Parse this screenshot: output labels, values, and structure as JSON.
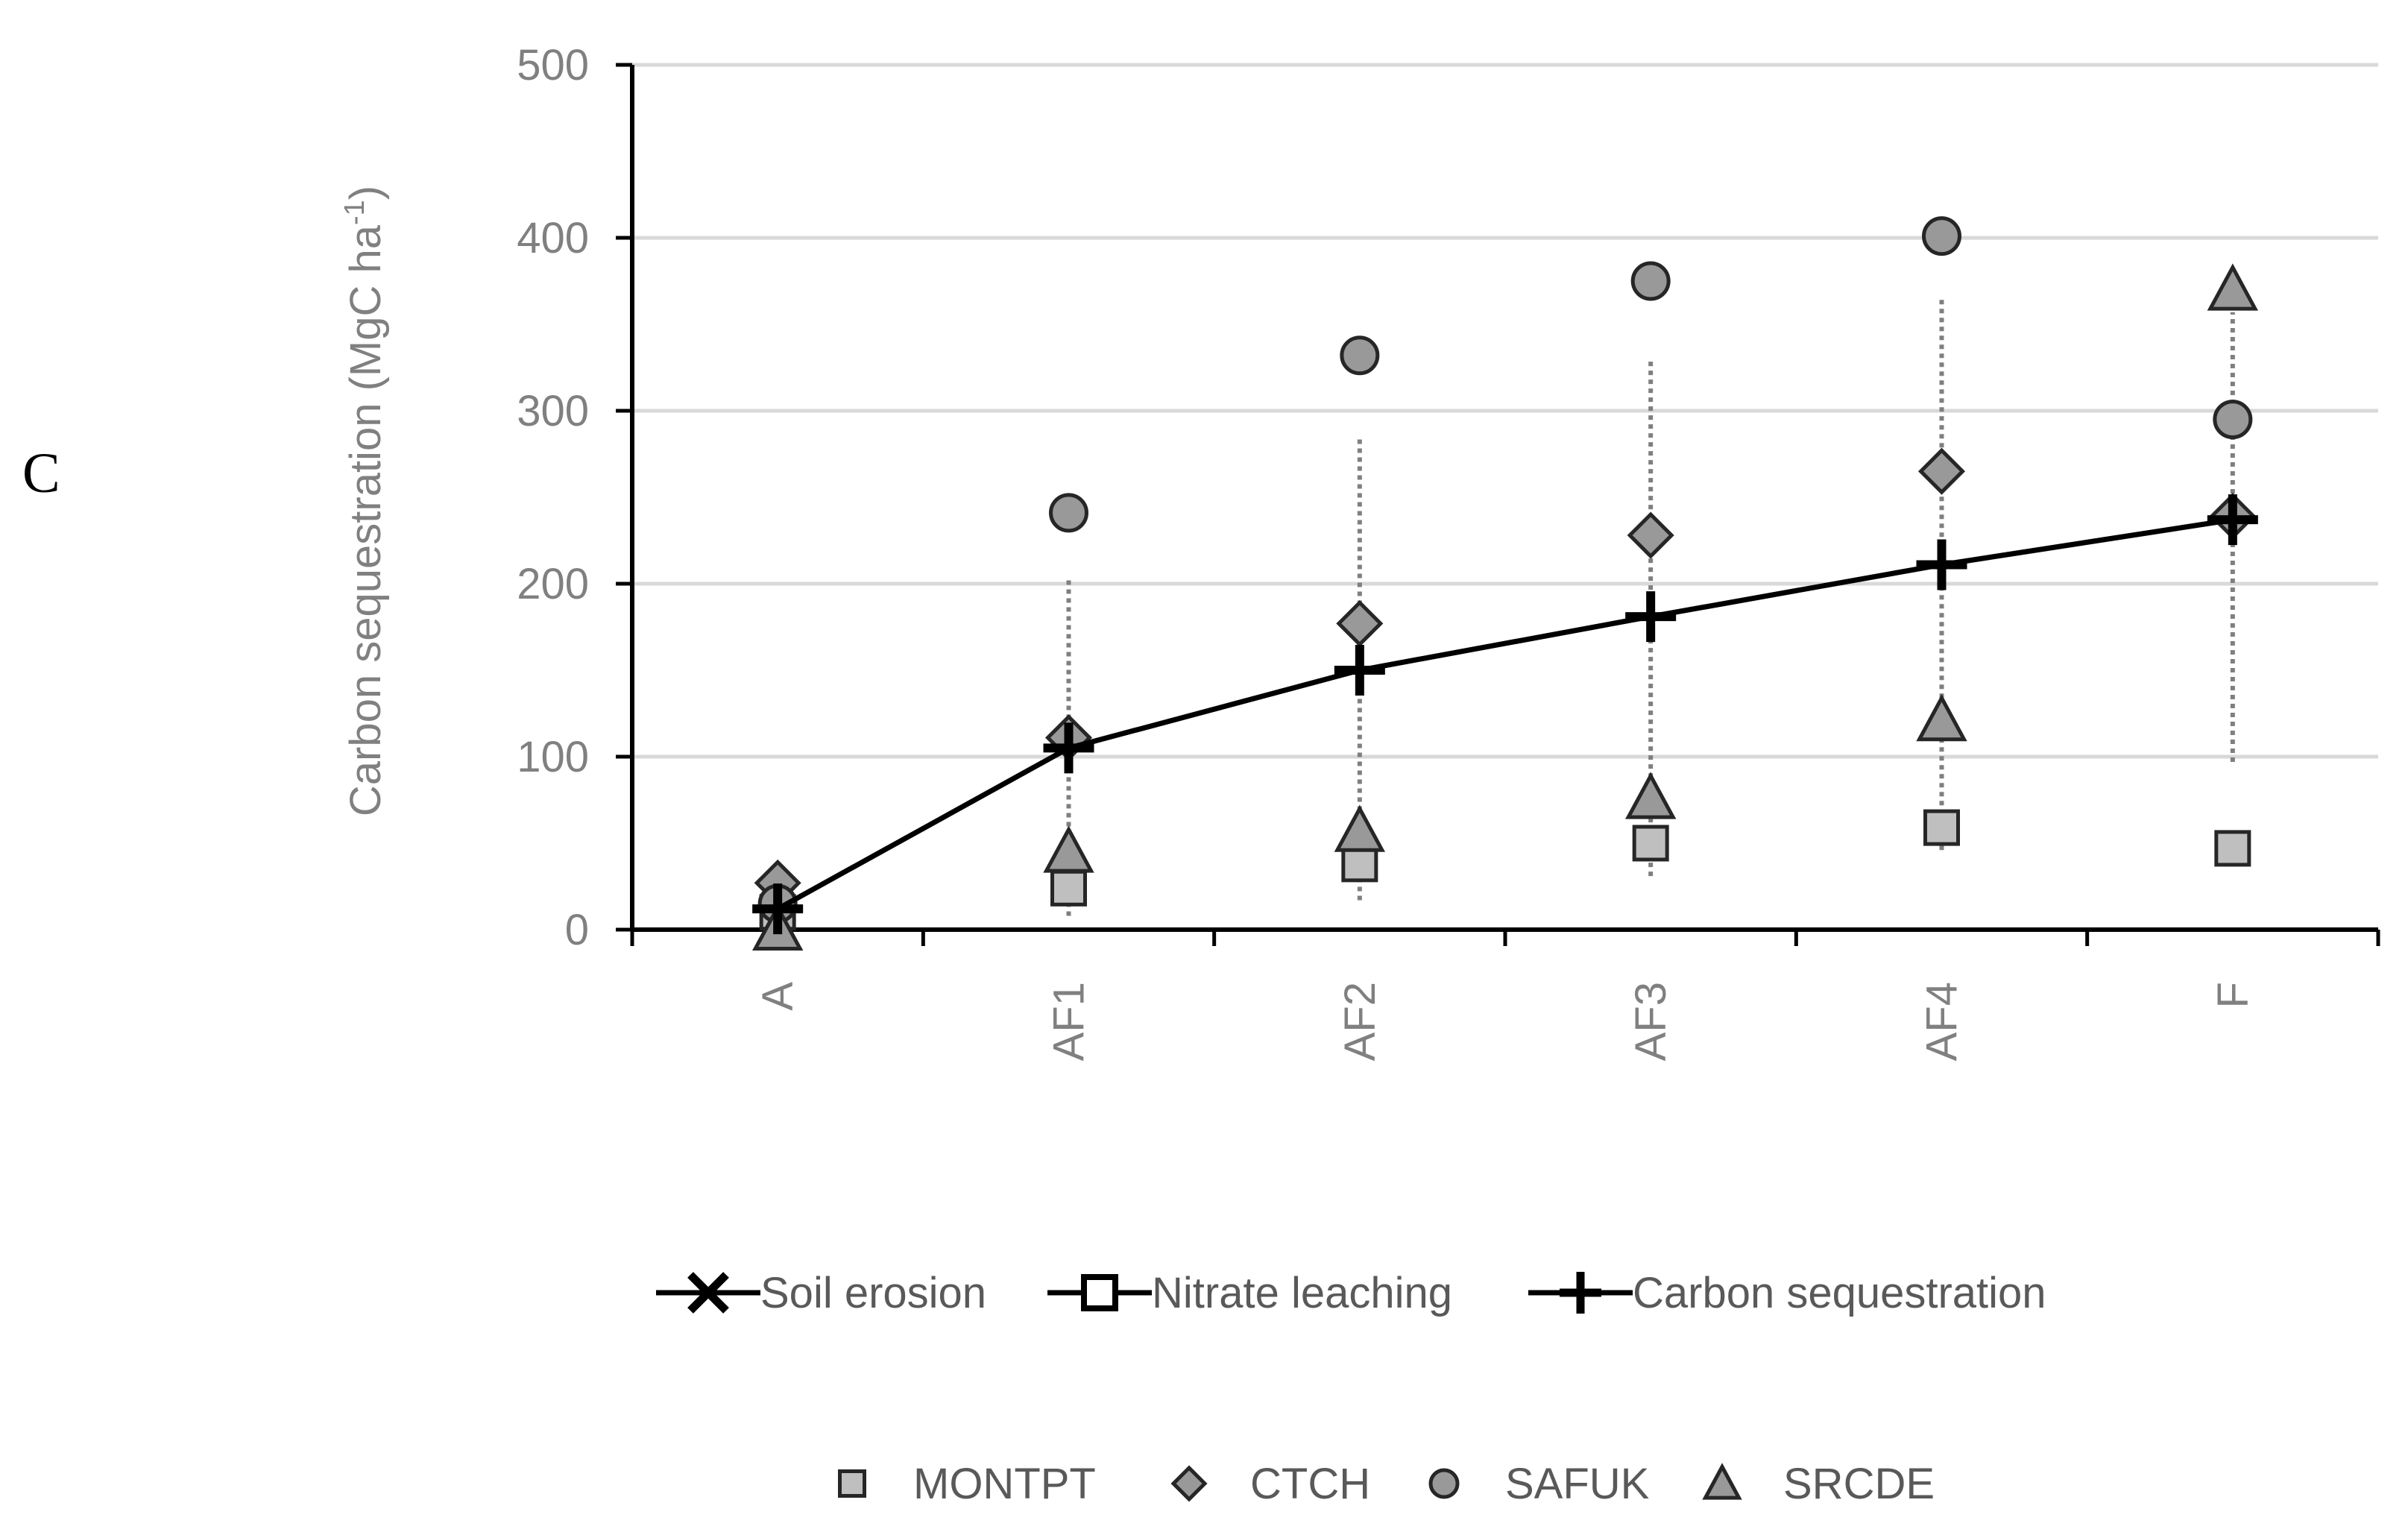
{
  "panel_label": "C",
  "chart_data": {
    "type": "scatter",
    "title": "",
    "xlabel": "",
    "ylabel_main": "Carbon sequestration (MgC ha",
    "ylabel_superscript": "-1",
    "ylabel_close": ")",
    "ylim": [
      0,
      500
    ],
    "yticks": [
      0,
      100,
      200,
      300,
      400,
      500
    ],
    "grid": true,
    "categories": [
      "A",
      "AF1",
      "AF2",
      "AF3",
      "AF4",
      "F"
    ],
    "mean_line": {
      "name": "Carbon sequestration",
      "values": [
        12,
        105,
        150,
        181,
        211,
        237
      ]
    },
    "range": {
      "min": [
        0,
        8,
        17,
        31,
        46,
        97
      ],
      "max": [
        25,
        203,
        285,
        331,
        366,
        357
      ]
    },
    "series": [
      {
        "name": "MONTPT",
        "marker": "square",
        "color": "#bfbfbf",
        "values": [
          10,
          24,
          38,
          50,
          59,
          47
        ]
      },
      {
        "name": "CTCH",
        "marker": "diamond",
        "color": "#999999",
        "values": [
          27,
          111,
          177,
          228,
          265,
          239
        ]
      },
      {
        "name": "SAFUK",
        "marker": "circle",
        "color": "#999999",
        "values": [
          15,
          241,
          332,
          375,
          401,
          295
        ]
      },
      {
        "name": "SRCDE",
        "marker": "triangle",
        "color": "#999999",
        "values": [
          0,
          45,
          57,
          76,
          121,
          370
        ]
      }
    ],
    "legend_top": [
      "Soil erosion",
      "Nitrate leaching",
      "Carbon sequestration"
    ],
    "legend_placement": "bottom"
  }
}
